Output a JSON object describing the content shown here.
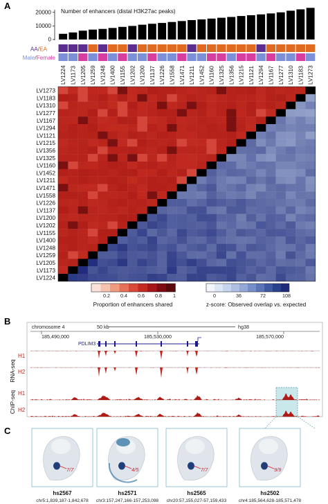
{
  "panel_a": {
    "letter": "A",
    "bar_title": "Number of enhancers (distal H3K27ac peaks)",
    "bar_ticks": [
      "20000",
      "10000",
      "0"
    ],
    "ancestry_label_aa": "AA",
    "ancestry_label_ea": "EA",
    "sex_label_male": "Male",
    "sex_label_female": "Female",
    "colors": {
      "aa": "#5b2d8e",
      "ea": "#e06a1f",
      "male": "#7b90d6",
      "female": "#d63fa0",
      "share_high": "#b51f1a",
      "zscore_low": "#1e2a7a",
      "diag": "#000000"
    },
    "col_labels": [
      "LV1224",
      "LV1173",
      "LV1205",
      "LV1259",
      "LV1248",
      "LV1400",
      "LV1155",
      "LV1202",
      "LV1200",
      "LV1137",
      "LV1226",
      "LV1558",
      "LV1471",
      "LV1211",
      "LV1452",
      "LV1160",
      "LV1325",
      "LV1356",
      "LV1215",
      "LV1121",
      "LV1294",
      "LV1167",
      "LV1277",
      "LV1310",
      "LV1183",
      "LV1273"
    ],
    "row_labels": [
      "LV1273",
      "LV1183",
      "LV1310",
      "LV1277",
      "LV1167",
      "LV1294",
      "LV1121",
      "LV1215",
      "LV1356",
      "LV1325",
      "LV1160",
      "LV1452",
      "LV1211",
      "LV1471",
      "LV1558",
      "LV1226",
      "LV1137",
      "LV1200",
      "LV1202",
      "LV1155",
      "LV1400",
      "LV1248",
      "LV1259",
      "LV1205",
      "LV1173",
      "LV1224"
    ],
    "legend_share": {
      "ticks": [
        "0.2",
        "0.4",
        "0.6",
        "0.8",
        "1"
      ],
      "title": "Proportion of enhancers shared"
    },
    "legend_z": {
      "ticks": [
        "0",
        "36",
        "72",
        "108"
      ],
      "title": "z-score: Observed overlap vs. expected"
    }
  },
  "panel_b": {
    "letter": "B",
    "chromosome": "chromosome 4",
    "scale_label": "50 kb",
    "genome": "hg38",
    "coords": [
      "185,490,000",
      "185,530,000",
      "185,570,000"
    ],
    "gene": "PDLIM3",
    "rna_label": "RNA-seq",
    "chip_label": "ChIP-seq",
    "h1": "H1",
    "h2": "H2"
  },
  "panel_c": {
    "letter": "C",
    "embryos": [
      {
        "id": "hs2567",
        "coord": "chr5:1,839,187-1,842,678",
        "ratio": "7/7"
      },
      {
        "id": "hs2571",
        "coord": "chr3:157,247,166-157,253,098",
        "ratio": "4/5"
      },
      {
        "id": "hs2565",
        "coord": "chr20:57,155,027-57,159,433",
        "ratio": "7/7"
      },
      {
        "id": "hs2502",
        "coord": "chr4:185,564,628-185,571,478",
        "ratio": "9/9"
      }
    ]
  },
  "chart_data": {
    "type": "bar",
    "title": "Number of enhancers (distal H3K27ac peaks)",
    "categories": [
      "LV1224",
      "LV1173",
      "LV1205",
      "LV1259",
      "LV1248",
      "LV1400",
      "LV1155",
      "LV1202",
      "LV1200",
      "LV1137",
      "LV1226",
      "LV1558",
      "LV1471",
      "LV1211",
      "LV1452",
      "LV1160",
      "LV1325",
      "LV1356",
      "LV1215",
      "LV1121",
      "LV1294",
      "LV1167",
      "LV1277",
      "LV1310",
      "LV1183",
      "LV1273"
    ],
    "values": [
      4200,
      5200,
      6500,
      7300,
      7800,
      8500,
      9300,
      10000,
      10900,
      11600,
      12200,
      12900,
      13600,
      14300,
      14800,
      15400,
      16000,
      16600,
      17300,
      17900,
      18500,
      19200,
      20000,
      21200,
      22200,
      23300
    ],
    "ylim": [
      0,
      25000
    ],
    "ancestry": [
      "AA",
      "AA",
      "AA",
      "EA",
      "AA",
      "EA",
      "EA",
      "AA",
      "EA",
      "EA",
      "EA",
      "EA",
      "EA",
      "AA",
      "EA",
      "EA",
      "EA",
      "EA",
      "EA",
      "EA",
      "AA",
      "EA",
      "EA",
      "EA",
      "EA",
      "EA"
    ],
    "sex": [
      "Male",
      "Male",
      "Female",
      "Male",
      "Female",
      "Male",
      "Female",
      "Male",
      "Male",
      "Female",
      "Male",
      "Male",
      "Female",
      "Male",
      "Male",
      "Female",
      "Female",
      "Male",
      "Female",
      "Female",
      "Male",
      "Female",
      "Male",
      "Male",
      "Female",
      "Male"
    ]
  }
}
